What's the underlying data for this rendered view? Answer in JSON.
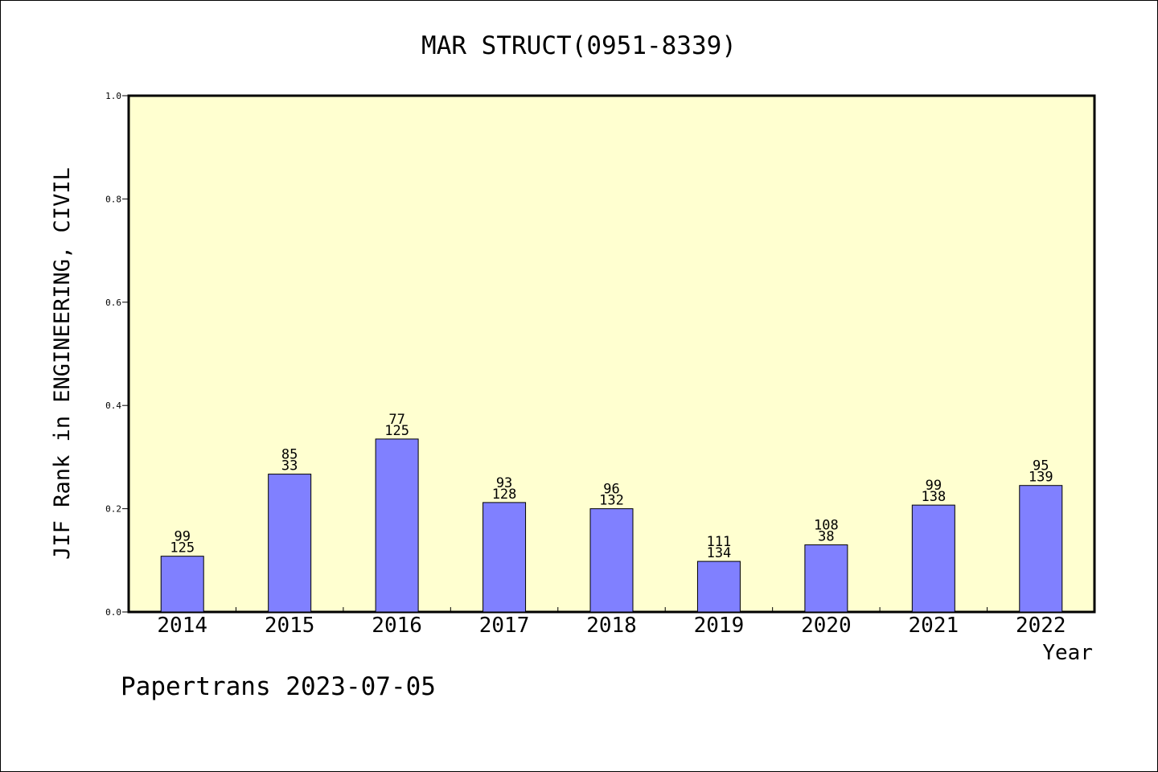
{
  "chart_data": {
    "type": "bar",
    "title": "MAR STRUCT(0951-8339)",
    "xlabel": "Year",
    "ylabel": "JIF Rank in ENGINEERING, CIVIL",
    "footer": "Papertrans 2023-07-05",
    "ylim": [
      0,
      1.0
    ],
    "yticks": [
      0.0,
      0.2,
      0.4,
      0.6,
      0.8,
      1.0
    ],
    "ytick_labels": [
      "0.0",
      "0.2",
      "0.4",
      "0.6",
      "0.8",
      "1.0"
    ],
    "categories": [
      "2014",
      "2015",
      "2016",
      "2017",
      "2018",
      "2019",
      "2020",
      "2021",
      "2022"
    ],
    "values": [
      0.108,
      0.267,
      0.335,
      0.212,
      0.2,
      0.098,
      0.13,
      0.207,
      0.245
    ],
    "label_top": [
      "99",
      "85",
      "77",
      "93",
      "96",
      "111",
      "108",
      "99",
      "95"
    ],
    "label_bottom": [
      "125",
      "33",
      "125",
      "128",
      "132",
      "134",
      "38",
      "138",
      "139"
    ],
    "grid": false,
    "colors": {
      "plot_background": "#FFFFD0",
      "bar_fill": "#8080FF",
      "bar_stroke": "#000000",
      "axis": "#000000"
    }
  }
}
